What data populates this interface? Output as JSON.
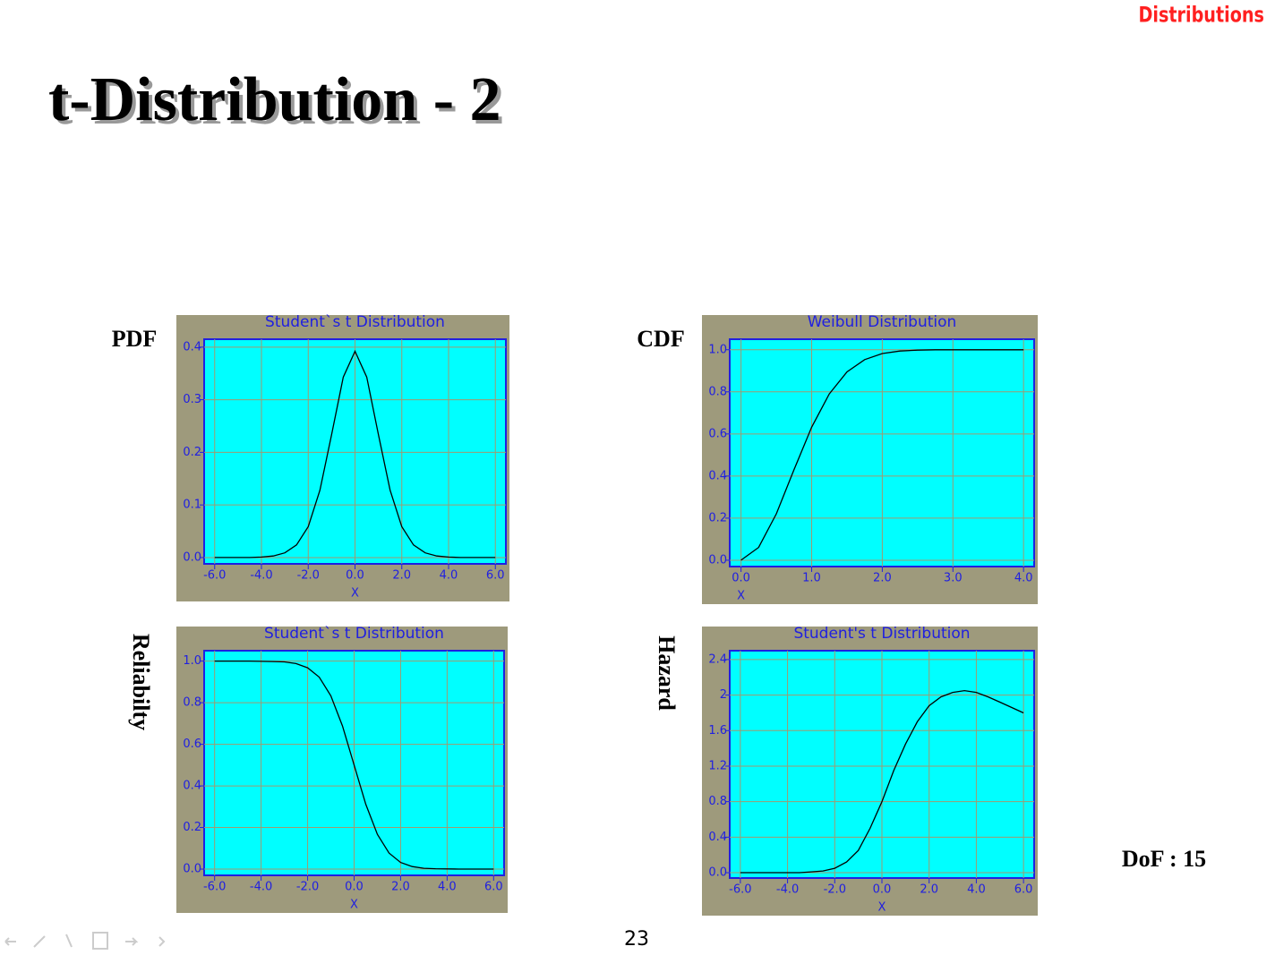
{
  "slide": {
    "header": "Distributions",
    "title": "t-Distribution - 2",
    "note": "DoF : 15",
    "page_number": "23"
  },
  "chart_data": [
    {
      "type": "line",
      "title": "Student`s t Distribution",
      "xlabel": "X",
      "ylabel": "PDF",
      "color": "#000000",
      "grid": true,
      "x": [
        -6,
        -5.5,
        -5,
        -4.5,
        -4,
        -3.5,
        -3,
        -2.5,
        -2,
        -1.5,
        -1,
        -0.5,
        0,
        0.5,
        1,
        1.5,
        2,
        2.5,
        3,
        3.5,
        4,
        4.5,
        5,
        5.5,
        6
      ],
      "values": [
        0,
        0,
        0,
        0,
        0.001,
        0.003,
        0.009,
        0.024,
        0.059,
        0.128,
        0.234,
        0.343,
        0.392,
        0.343,
        0.234,
        0.128,
        0.059,
        0.024,
        0.009,
        0.003,
        0.001,
        0,
        0,
        0,
        0
      ],
      "xlim": [
        -6.45,
        6.45
      ],
      "ylim": [
        -0.012,
        0.415
      ],
      "xticks": [
        {
          "value": -6,
          "label": "-6.0"
        },
        {
          "value": -4,
          "label": "-4.0"
        },
        {
          "value": -2,
          "label": "-2.0"
        },
        {
          "value": 0,
          "label": "0.0"
        },
        {
          "value": 2,
          "label": "2.0"
        },
        {
          "value": 4,
          "label": "4.0"
        },
        {
          "value": 6,
          "label": "6.0"
        }
      ],
      "yticks": [
        {
          "value": 0,
          "label": "0.0"
        },
        0.1,
        0.2,
        0.3,
        0.4
      ]
    },
    {
      "type": "line",
      "title": "Weibull Distribution",
      "xlabel": "X",
      "ylabel": "CDF",
      "color": "#000000",
      "grid": true,
      "x": [
        0,
        0.25,
        0.5,
        0.75,
        1,
        1.25,
        1.5,
        1.75,
        2,
        2.25,
        2.5,
        2.75,
        3,
        3.25,
        3.5,
        3.75,
        4
      ],
      "values": [
        0,
        0.061,
        0.221,
        0.43,
        0.632,
        0.79,
        0.895,
        0.953,
        0.982,
        0.994,
        0.998,
        1,
        1,
        1,
        1,
        1,
        1
      ],
      "xlim": [
        -0.16,
        4.15
      ],
      "ylim": [
        -0.03,
        1.05
      ],
      "xticks": [
        {
          "value": 0,
          "label": "0.0"
        },
        {
          "value": 1,
          "label": "1.0"
        },
        {
          "value": 2,
          "label": "2.0"
        },
        {
          "value": 3,
          "label": "3.0"
        },
        {
          "value": 4,
          "label": "4.0"
        }
      ],
      "yticks": [
        {
          "value": 0,
          "label": "0.0"
        },
        0.2,
        0.4,
        0.6,
        0.8,
        {
          "value": 1,
          "label": "1.0"
        }
      ]
    },
    {
      "type": "line",
      "title": "Student`s t Distribution",
      "xlabel": "X",
      "ylabel": "Reliabilty",
      "color": "#000000",
      "grid": true,
      "x": [
        -6,
        -5.5,
        -5,
        -4.5,
        -4,
        -3.5,
        -3,
        -2.5,
        -2,
        -1.5,
        -1,
        -0.5,
        0,
        0.5,
        1,
        1.5,
        2,
        2.5,
        3,
        3.5,
        4,
        4.5,
        5,
        5.5,
        6
      ],
      "values": [
        1,
        1,
        1,
        1,
        0.999,
        0.998,
        0.996,
        0.988,
        0.968,
        0.923,
        0.833,
        0.688,
        0.5,
        0.312,
        0.167,
        0.077,
        0.032,
        0.012,
        0.004,
        0.002,
        0.001,
        0,
        0,
        0,
        0
      ],
      "xlim": [
        -6.45,
        6.45
      ],
      "ylim": [
        -0.03,
        1.05
      ],
      "xticks": [
        {
          "value": -6,
          "label": "-6.0"
        },
        {
          "value": -4,
          "label": "-4.0"
        },
        {
          "value": -2,
          "label": "-2.0"
        },
        {
          "value": 0,
          "label": "0.0"
        },
        {
          "value": 2,
          "label": "2.0"
        },
        {
          "value": 4,
          "label": "4.0"
        },
        {
          "value": 6,
          "label": "6.0"
        }
      ],
      "yticks": [
        {
          "value": 0,
          "label": "0.0"
        },
        0.2,
        0.4,
        0.6,
        0.8,
        {
          "value": 1,
          "label": "1.0"
        }
      ]
    },
    {
      "type": "line",
      "title": "Student's t Distribution",
      "xlabel": "X",
      "ylabel": "Hazard",
      "color": "#000000",
      "grid": true,
      "x": [
        -6,
        -5.5,
        -5,
        -4.5,
        -4,
        -3.5,
        -3,
        -2.5,
        -2,
        -1.5,
        -1,
        -0.5,
        0,
        0.5,
        1,
        1.5,
        2,
        2.5,
        3,
        3.5,
        4,
        4.5,
        5,
        5.5,
        6
      ],
      "values": [
        0,
        0,
        0,
        0,
        0,
        0,
        0.01,
        0.02,
        0.05,
        0.12,
        0.25,
        0.5,
        0.8,
        1.15,
        1.45,
        1.7,
        1.88,
        1.98,
        2.03,
        2.05,
        2.03,
        1.98,
        1.92,
        1.86,
        1.8
      ],
      "xlim": [
        -6.45,
        6.45
      ],
      "ylim": [
        -0.06,
        2.5
      ],
      "xticks": [
        {
          "value": -6,
          "label": "-6.0"
        },
        {
          "value": -4,
          "label": "-4.0"
        },
        {
          "value": -2,
          "label": "-2.0"
        },
        {
          "value": 0,
          "label": "0.0"
        },
        {
          "value": 2,
          "label": "2.0"
        },
        {
          "value": 4,
          "label": "4.0"
        },
        {
          "value": 6,
          "label": "6.0"
        }
      ],
      "yticks": [
        {
          "value": 0,
          "label": "0.0"
        },
        0.4,
        0.8,
        1.2,
        1.6,
        2,
        2.4
      ]
    }
  ]
}
